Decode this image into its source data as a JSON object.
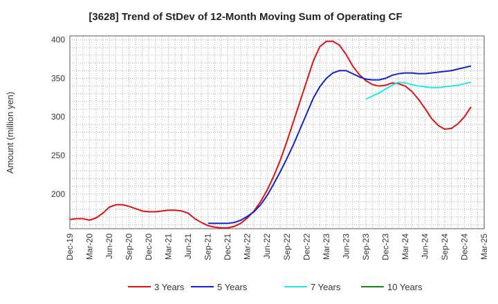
{
  "chart_data": {
    "type": "line",
    "title": "[3628]  Trend of StDev of 12-Month Moving Sum of Operating CF",
    "ylabel": "Amount (million yen)",
    "xlabel": "",
    "ylim": [
      155,
      405
    ],
    "yticks": [
      200,
      250,
      300,
      350,
      400
    ],
    "xticks": [
      "Dec-19",
      "Mar-20",
      "Jun-20",
      "Sep-20",
      "Dec-20",
      "Mar-21",
      "Jun-21",
      "Sep-21",
      "Dec-21",
      "Mar-22",
      "Jun-22",
      "Sep-22",
      "Dec-22",
      "Mar-23",
      "Jun-23",
      "Sep-23",
      "Dec-23",
      "Mar-24",
      "Jun-24",
      "Sep-24",
      "Dec-24",
      "Mar-25"
    ],
    "grid": true,
    "legend_position": "bottom",
    "series": [
      {
        "name": "3 Years",
        "color": "#dd1111",
        "start_index": 0,
        "values": [
          167,
          168,
          168,
          166,
          169,
          175,
          183,
          186,
          186,
          184,
          181,
          178,
          177,
          177,
          178,
          179,
          179,
          178,
          175,
          168,
          163,
          159,
          157,
          156,
          156,
          158,
          162,
          169,
          178,
          190,
          205,
          223,
          244,
          268,
          294,
          320,
          346,
          372,
          391,
          398,
          398,
          393,
          381,
          366,
          355,
          347,
          342,
          340,
          341,
          344,
          343,
          340,
          333,
          323,
          311,
          298,
          289,
          284,
          285,
          291,
          300,
          313
        ]
      },
      {
        "name": "5 Years",
        "color": "#1122cc",
        "start_index": 21,
        "values": [
          162,
          162,
          162,
          162,
          163,
          166,
          171,
          177,
          186,
          198,
          213,
          229,
          246,
          264,
          284,
          304,
          324,
          339,
          350,
          357,
          360,
          360,
          356,
          352,
          349,
          348,
          348,
          350,
          354,
          356,
          357,
          357,
          356,
          356,
          357,
          358,
          359,
          360,
          362,
          364,
          366
        ]
      },
      {
        "name": "7 Years",
        "color": "#22e8e8",
        "start_index": 45,
        "values": [
          323,
          327,
          331,
          336,
          341,
          345,
          344,
          342,
          340,
          339,
          338,
          338,
          339,
          340,
          341,
          343,
          345
        ]
      },
      {
        "name": "10 Years",
        "color": "#118811",
        "start_index": 0,
        "values": []
      }
    ]
  }
}
